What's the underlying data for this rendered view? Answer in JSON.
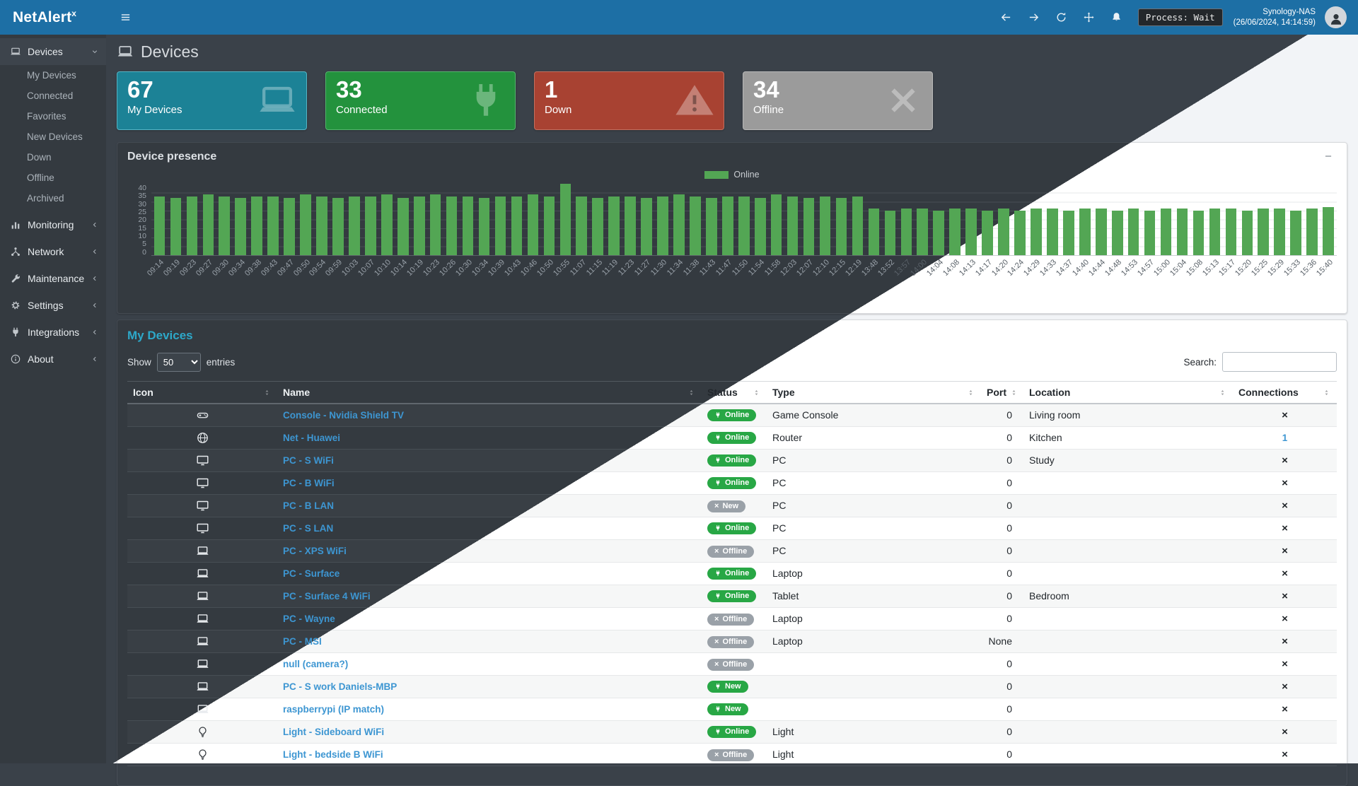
{
  "header": {
    "logo": "NetAlert",
    "logo_sup": "x",
    "process_label": "Process: Wait",
    "host": "Synology-NAS",
    "timestamp": "(26/06/2024, 14:14:59)"
  },
  "page": {
    "title": "Devices"
  },
  "sidebar": {
    "items": [
      {
        "label": "Devices",
        "icon": "laptop",
        "expanded": true,
        "active": true,
        "children": [
          "My Devices",
          "Connected",
          "Favorites",
          "New Devices",
          "Down",
          "Offline",
          "Archived"
        ]
      },
      {
        "label": "Monitoring",
        "icon": "chart"
      },
      {
        "label": "Network",
        "icon": "network"
      },
      {
        "label": "Maintenance",
        "icon": "wrench"
      },
      {
        "label": "Settings",
        "icon": "gear"
      },
      {
        "label": "Integrations",
        "icon": "plug"
      },
      {
        "label": "About",
        "icon": "info"
      }
    ]
  },
  "cards": [
    {
      "value": "67",
      "label": "My Devices",
      "icon": "laptop",
      "bg": "#1c8296",
      "border": "#55b5c6"
    },
    {
      "value": "33",
      "label": "Connected",
      "icon": "plug",
      "bg": "#23923d",
      "border": "#55b56d"
    },
    {
      "value": "1",
      "label": "Down",
      "icon": "warning",
      "bg": "#a84232",
      "border": "#c3705f"
    },
    {
      "value": "34",
      "label": "Offline",
      "icon": "x",
      "bg": "#9b9b9b",
      "border": "#b9b9b9"
    }
  ],
  "chart_data": {
    "type": "bar",
    "title": "Device presence",
    "legend": [
      "Online"
    ],
    "bar_color": "#53a654",
    "grid": true,
    "ylim": [
      0,
      40
    ],
    "yticks": [
      40,
      35,
      30,
      25,
      20,
      15,
      10,
      5,
      0
    ],
    "x": [
      "09:14",
      "09:19",
      "09:23",
      "09:27",
      "09:30",
      "09:34",
      "09:38",
      "09:43",
      "09:47",
      "09:50",
      "09:54",
      "09:59",
      "10:03",
      "10:07",
      "10:10",
      "10:14",
      "10:19",
      "10:23",
      "10:26",
      "10:30",
      "10:34",
      "10:39",
      "10:43",
      "10:46",
      "10:50",
      "10:55",
      "11:07",
      "11:15",
      "11:19",
      "11:23",
      "11:27",
      "11:30",
      "11:34",
      "11:38",
      "11:43",
      "11:47",
      "11:50",
      "11:54",
      "11:58",
      "12:03",
      "12:07",
      "12:10",
      "12:15",
      "12:19",
      "13:48",
      "13:52",
      "13:57",
      "14:00",
      "14:04",
      "14:08",
      "14:13",
      "14:17",
      "14:20",
      "14:24",
      "14:29",
      "14:33",
      "14:37",
      "14:40",
      "14:44",
      "14:48",
      "14:53",
      "14:57",
      "15:00",
      "15:04",
      "15:08",
      "15:13",
      "15:17",
      "15:20",
      "15:25",
      "15:29",
      "15:33",
      "15:36",
      "15:40"
    ],
    "values": [
      33,
      32,
      33,
      34,
      33,
      32,
      33,
      33,
      32,
      34,
      33,
      32,
      33,
      33,
      34,
      32,
      33,
      34,
      33,
      33,
      32,
      33,
      33,
      34,
      33,
      40,
      33,
      32,
      33,
      33,
      32,
      33,
      34,
      33,
      32,
      33,
      33,
      32,
      34,
      33,
      32,
      33,
      32,
      33,
      26,
      25,
      26,
      26,
      25,
      26,
      26,
      25,
      26,
      25,
      26,
      26,
      25,
      26,
      26,
      25,
      26,
      25,
      26,
      26,
      25,
      26,
      26,
      25,
      26,
      26,
      25,
      26,
      27
    ]
  },
  "devices_section": {
    "title": "My Devices",
    "show_label": "Show",
    "page_size": "50",
    "entries_label": "entries",
    "search_label": "Search:",
    "columns": [
      {
        "label": "Icon"
      },
      {
        "label": "Name"
      },
      {
        "label": "Status"
      },
      {
        "label": "Type"
      },
      {
        "label": "Port"
      },
      {
        "label": "Location"
      },
      {
        "label": "Connections"
      }
    ],
    "rows": [
      {
        "icon": "gamepad",
        "name": "Console - Nvidia Shield TV",
        "status": "Online",
        "status_color": "green",
        "type": "Game Console",
        "port": "0",
        "location": "Living room",
        "connections": "×",
        "conn_link": false
      },
      {
        "icon": "globe",
        "name": "Net - Huawei",
        "status": "Online",
        "status_color": "green",
        "type": "Router",
        "port": "0",
        "location": "Kitchen",
        "connections": "1",
        "conn_link": true
      },
      {
        "icon": "desktop",
        "name": "PC - S WiFi",
        "status": "Online",
        "status_color": "green",
        "type": "PC",
        "port": "0",
        "location": "Study",
        "connections": "×",
        "conn_link": false
      },
      {
        "icon": "desktop",
        "name": "PC - B WiFi",
        "status": "Online",
        "status_color": "green",
        "type": "PC",
        "port": "0",
        "location": "",
        "connections": "×",
        "conn_link": false
      },
      {
        "icon": "desktop",
        "name": "PC - B LAN",
        "status": "New",
        "status_color": "gray",
        "type": "PC",
        "port": "0",
        "location": "",
        "connections": "×",
        "conn_link": false
      },
      {
        "icon": "desktop",
        "name": "PC - S LAN",
        "status": "Online",
        "status_color": "green",
        "type": "PC",
        "port": "0",
        "location": "",
        "connections": "×",
        "conn_link": false
      },
      {
        "icon": "laptop",
        "name": "PC - XPS WiFi",
        "status": "Offline",
        "status_color": "gray",
        "type": "PC",
        "port": "0",
        "location": "",
        "connections": "×",
        "conn_link": false
      },
      {
        "icon": "laptop",
        "name": "PC - Surface",
        "status": "Online",
        "status_color": "green",
        "type": "Laptop",
        "port": "0",
        "location": "",
        "connections": "×",
        "conn_link": false
      },
      {
        "icon": "laptop",
        "name": "PC - Surface 4 WiFi",
        "status": "Online",
        "status_color": "green",
        "type": "Tablet",
        "port": "0",
        "location": "Bedroom",
        "connections": "×",
        "conn_link": false
      },
      {
        "icon": "laptop",
        "name": "PC - Wayne",
        "status": "Offline",
        "status_color": "gray",
        "type": "Laptop",
        "port": "0",
        "location": "",
        "connections": "×",
        "conn_link": false
      },
      {
        "icon": "laptop",
        "name": "PC - MSI",
        "status": "Offline",
        "status_color": "gray",
        "type": "Laptop",
        "port": "None",
        "location": "",
        "connections": "×",
        "conn_link": false
      },
      {
        "icon": "laptop",
        "name": "null (camera?)",
        "status": "Offline",
        "status_color": "gray",
        "type": "",
        "port": "0",
        "location": "",
        "connections": "×",
        "conn_link": false
      },
      {
        "icon": "laptop",
        "name": "PC - S work Daniels-MBP",
        "status": "New",
        "status_color": "green",
        "type": "",
        "port": "0",
        "location": "",
        "connections": "×",
        "conn_link": false
      },
      {
        "icon": "laptop",
        "name": "raspberrypi (IP match)",
        "status": "New",
        "status_color": "green",
        "type": "",
        "port": "0",
        "location": "",
        "connections": "×",
        "conn_link": false
      },
      {
        "icon": "bulb",
        "name": "Light - Sideboard WiFi",
        "status": "Online",
        "status_color": "green",
        "type": "Light",
        "port": "0",
        "location": "",
        "connections": "×",
        "conn_link": false
      },
      {
        "icon": "bulb",
        "name": "Light - bedside B WiFi",
        "status": "Offline",
        "status_color": "gray",
        "type": "Light",
        "port": "0",
        "location": "",
        "connections": "×",
        "conn_link": false
      }
    ]
  }
}
